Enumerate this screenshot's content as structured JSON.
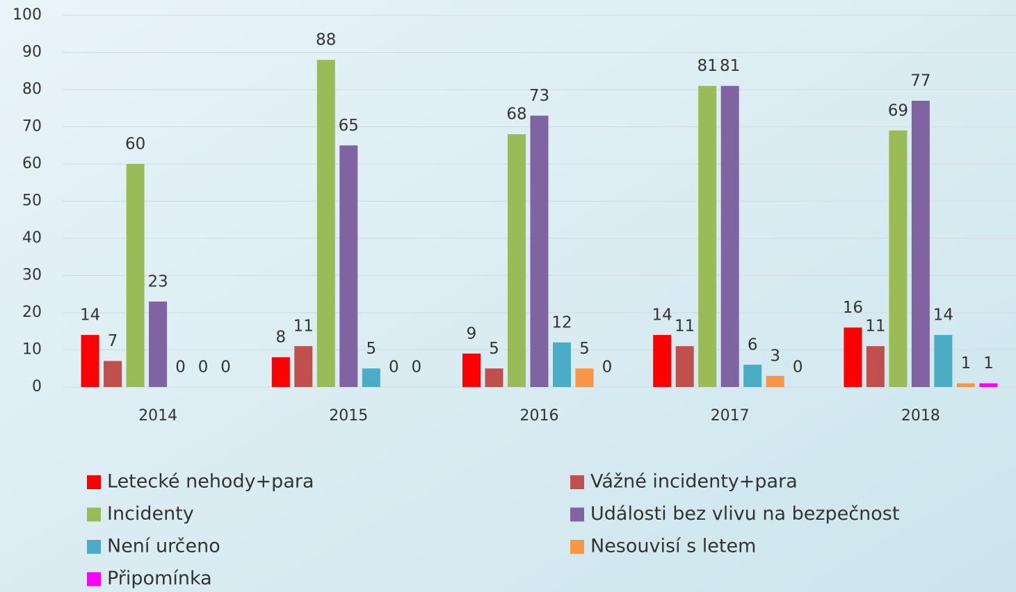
{
  "chart_data": {
    "type": "bar",
    "categories": [
      "2014",
      "2015",
      "2016",
      "2017",
      "2018"
    ],
    "series": [
      {
        "name": "Letecké nehody+para",
        "color": "#ff0000",
        "values": [
          14,
          8,
          9,
          14,
          16
        ]
      },
      {
        "name": "Vážné incidenty+para",
        "color": "#c0504d",
        "values": [
          7,
          11,
          5,
          11,
          11
        ]
      },
      {
        "name": "Incidenty",
        "color": "#9bbb59",
        "values": [
          60,
          88,
          68,
          81,
          69
        ]
      },
      {
        "name": "Události bez vlivu na bezpečnost",
        "color": "#8064a2",
        "values": [
          23,
          65,
          73,
          81,
          77
        ]
      },
      {
        "name": "Není určeno",
        "color": "#4bacc6",
        "values": [
          0,
          5,
          12,
          6,
          14
        ]
      },
      {
        "name": "Nesouvisí s letem",
        "color": "#f79646",
        "values": [
          0,
          0,
          5,
          3,
          1
        ]
      },
      {
        "name": "Připomínka",
        "color": "#ff00ff",
        "values": [
          0,
          0,
          0,
          0,
          1
        ]
      }
    ],
    "ylim": [
      0,
      100
    ],
    "yticks": [
      0,
      10,
      20,
      30,
      40,
      50,
      60,
      70,
      80,
      90,
      100
    ],
    "grid": true,
    "data_labels": true,
    "legend": "bottom"
  }
}
